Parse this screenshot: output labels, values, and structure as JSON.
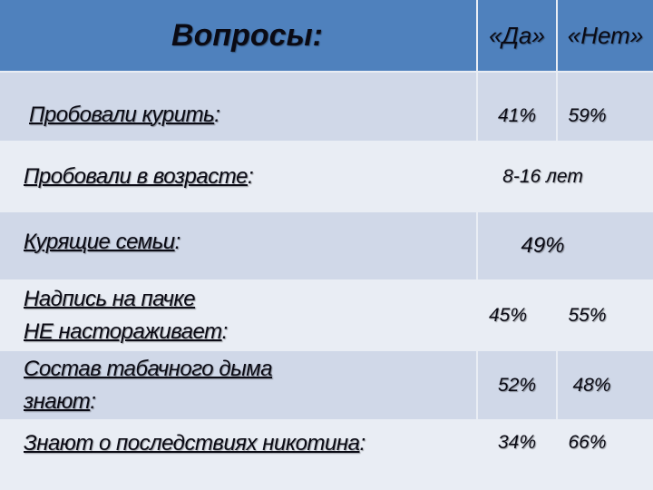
{
  "header": {
    "question": "Вопросы:",
    "yes": "«Да»",
    "no": "«Нет»"
  },
  "rows": [
    {
      "question": "Пробовали курить",
      "yes": "41%",
      "no": "59%"
    },
    {
      "question": "Пробовали в возрасте",
      "merged": "8-16 лет"
    },
    {
      "question": "Курящие семьи",
      "merged": "49%"
    },
    {
      "question_line1": "Надпись на пачке",
      "question_line2": "НЕ настораживает",
      "yes": "45%",
      "no": "55%"
    },
    {
      "question_line1": "Состав табачного дыма",
      "question_line2": "знают",
      "yes": "52%",
      "no": "48%"
    },
    {
      "question": "Знают о последствиях никотина",
      "yes": "34%",
      "no": "66%"
    }
  ],
  "colon": ":",
  "colors": {
    "header": "#4f81bd",
    "row_odd": "#d0d8e8",
    "row_even": "#e9edf4"
  }
}
